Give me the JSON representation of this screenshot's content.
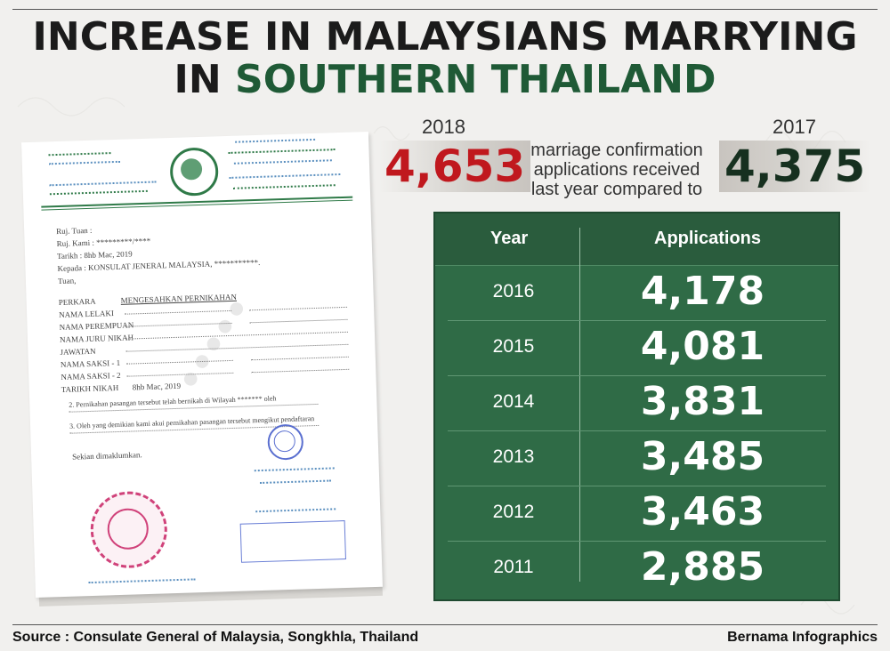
{
  "title": {
    "line1": "INCREASE IN MALAYSIANS MARRYING",
    "line2_prefix": "IN ",
    "line2_highlight": "SOUTHERN THAILAND"
  },
  "stats": {
    "year_current": "2018",
    "value_current": "4,653",
    "description": "marriage confirmation applications received last year compared to",
    "year_previous": "2017",
    "value_previous": "4,375"
  },
  "table": {
    "headers": [
      "Year",
      "Applications"
    ],
    "rows": [
      {
        "year": "2016",
        "applications": "4,178"
      },
      {
        "year": "2015",
        "applications": "4,081"
      },
      {
        "year": "2014",
        "applications": "3,831"
      },
      {
        "year": "2013",
        "applications": "3,485"
      },
      {
        "year": "2012",
        "applications": "3,463"
      },
      {
        "year": "2011",
        "applications": "2,885"
      }
    ]
  },
  "document": {
    "lines": [
      "Ruj. Tuan :",
      "Ruj. Kami :  *********/****",
      "Tarikh :  8hb Mac, 2019",
      "Kepada :  KONSULAT JENERAL MALAYSIA, ***********.",
      "Tuan,",
      "PERKARA",
      "NAMA LELAKI",
      "NAMA PEREMPUAN",
      "NAMA JURU NIKAH",
      "JAWATAN",
      "NAMA SAKSI - 1",
      "NAMA SAKSI - 2",
      "TARIKH NIKAH"
    ],
    "subject": "MENGESAHKAN PERNIKAHAN",
    "marriage_date": "8hb Mac, 2019",
    "note1": "2.  Pernikahan pasangan tersebut telah bernikah di Wilayah ******* oleh",
    "note2": "3.  Oleh yang demikian kami akui pernikahan pasangan tersebut mengikut pendaftaran",
    "closing": "Sekian dimaklumkan."
  },
  "footer": {
    "source": "Source : Consulate General of Malaysia, Songkhla, Thailand",
    "credit": "Bernama Infographics"
  },
  "colors": {
    "accent_green": "#1f5a36",
    "table_green": "#2f6b46",
    "accent_red": "#c0181e"
  }
}
